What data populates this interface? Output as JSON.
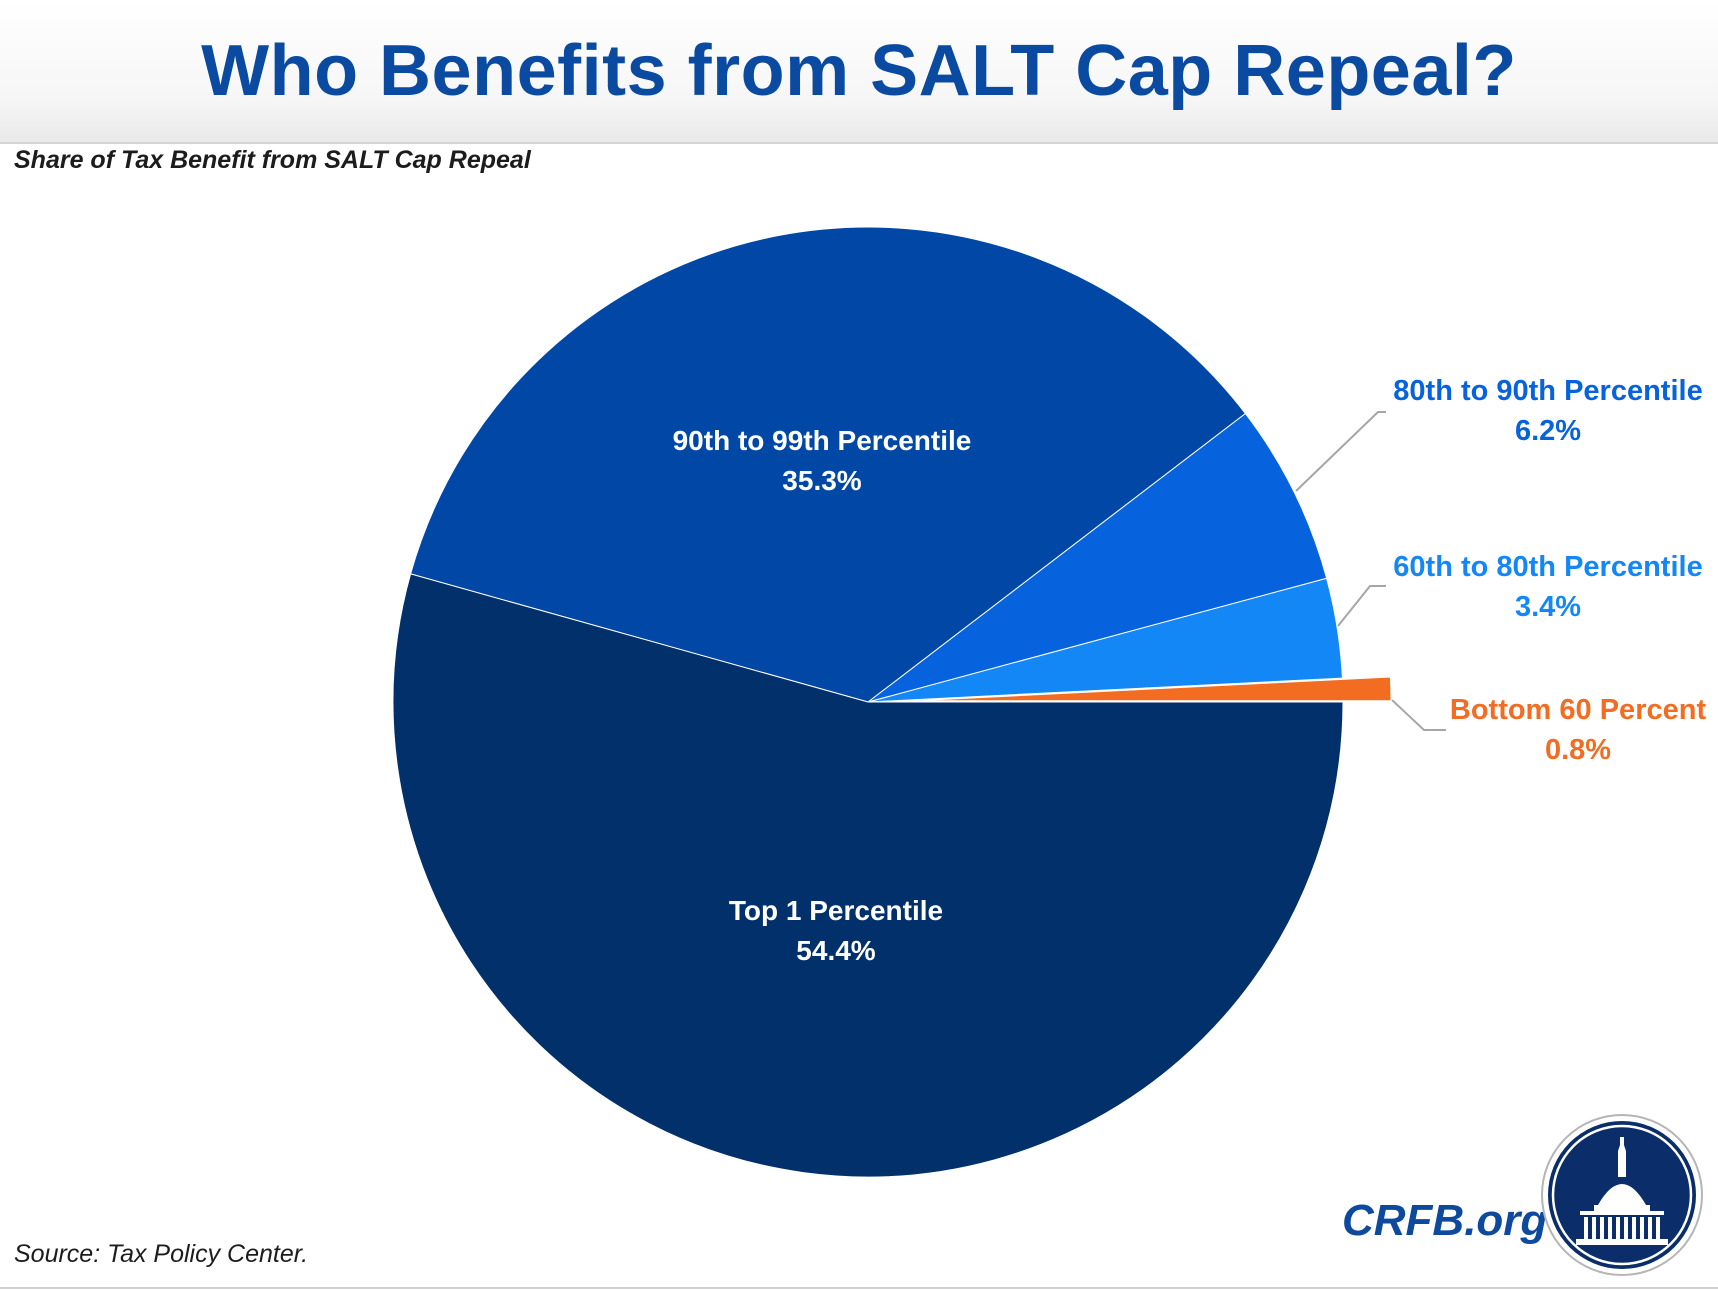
{
  "header": {
    "title": "Who Benefits from SALT Cap Repeal?"
  },
  "footer": {
    "source": "Source: Tax Policy Center.",
    "brand": "CRFB.org"
  },
  "colors": {
    "title": "#0a4aa0",
    "top_1": "#02306b",
    "p90_99": "#0148a6",
    "p80_90": "#0663dd",
    "p60_80": "#1487f7",
    "bottom_60": "#f26d21"
  },
  "logo": {
    "icon": "capitol-dome-seal-icon"
  },
  "chart_data": {
    "type": "pie",
    "title": "Share of Tax Benefit from SALT Cap Repeal",
    "slices": [
      {
        "label": "Bottom 60 Percent",
        "value": 0.8,
        "value_label": "0.8%",
        "color": "#f26d21",
        "exploded": true,
        "label_position": "outside-right"
      },
      {
        "label": "60th to 80th Percentile",
        "value": 3.4,
        "value_label": "3.4%",
        "color": "#1487f7",
        "label_position": "outside-right"
      },
      {
        "label": "80th to 90th Percentile",
        "value": 6.2,
        "value_label": "6.2%",
        "color": "#0663dd",
        "label_position": "outside-right"
      },
      {
        "label": "90th to 99th Percentile",
        "value": 35.3,
        "value_label": "35.3%",
        "color": "#0148a6",
        "label_position": "inside"
      },
      {
        "label": "Top 1 Percentile",
        "value": 54.4,
        "value_label": "54.4%",
        "color": "#02306b",
        "label_position": "inside"
      }
    ],
    "start": "3 o'clock",
    "direction": "counterclockwise",
    "legend": "none"
  }
}
